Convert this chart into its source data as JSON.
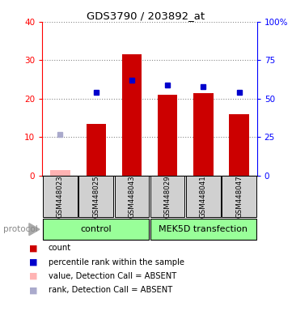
{
  "title": "GDS3790 / 203892_at",
  "samples": [
    "GSM448023",
    "GSM448025",
    "GSM448043",
    "GSM448029",
    "GSM448041",
    "GSM448047"
  ],
  "bar_values": [
    1.5,
    13.5,
    31.5,
    21.0,
    21.5,
    16.0
  ],
  "absent_bars": [
    true,
    false,
    false,
    false,
    false,
    false
  ],
  "dot_values_pct": [
    27,
    54,
    62,
    59,
    58,
    54
  ],
  "absent_dots": [
    true,
    false,
    false,
    false,
    false,
    false
  ],
  "ylim_left": [
    0,
    40
  ],
  "ylim_right": [
    0,
    100
  ],
  "yticks_left": [
    0,
    10,
    20,
    30,
    40
  ],
  "yticks_right": [
    0,
    25,
    50,
    75,
    100
  ],
  "ytick_labels_right": [
    "0",
    "25",
    "50",
    "75",
    "100%"
  ],
  "bar_color": "#cc0000",
  "bar_color_absent": "#ffb3b3",
  "dot_color": "#0000cc",
  "dot_color_absent": "#aaaacc",
  "grid_color": "#888888",
  "bar_width": 0.55,
  "plot_bg": "#ffffff",
  "sample_box_color": "#d0d0d0",
  "group_color": "#99ff99",
  "legend_items": [
    {
      "color": "#cc0000",
      "label": "count"
    },
    {
      "color": "#0000cc",
      "label": "percentile rank within the sample"
    },
    {
      "color": "#ffb3b3",
      "label": "value, Detection Call = ABSENT"
    },
    {
      "color": "#aaaacc",
      "label": "rank, Detection Call = ABSENT"
    }
  ]
}
